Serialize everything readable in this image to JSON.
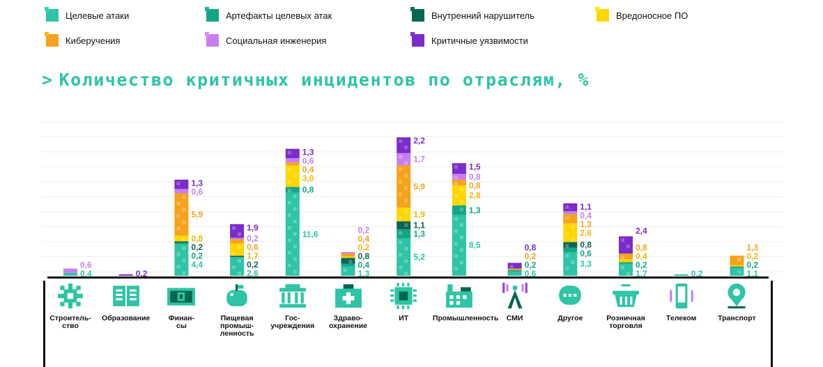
{
  "legend": [
    {
      "label": "Целевые атаки",
      "color": "#2ec4a5"
    },
    {
      "label": "Артефакты целевых атак",
      "color": "#14a585"
    },
    {
      "label": "Внутренний нарушитель",
      "color": "#0a6650"
    },
    {
      "label": "Вредоносное ПО",
      "color": "#ffd600"
    },
    {
      "label": "Киберучения",
      "color": "#f7a21b"
    },
    {
      "label": "Социальная инженерия",
      "color": "#c77ff0"
    },
    {
      "label": "Критичные уязвимости",
      "color": "#7b2cc9"
    }
  ],
  "title": "Количество критичных инцидентов по отраслям, %",
  "title_arrow": ">",
  "chart_data": {
    "type": "bar",
    "stacked": true,
    "title": "Количество критичных инцидентов по отраслям, %",
    "categories": [
      "Строитель-\nство",
      "Образование",
      "Финан-\nсы",
      "Пищевая\nпромыш-\nленность",
      "Гос-\nучреждения",
      "Здраво-\nохранение",
      "ИТ",
      "Промышленность",
      "СМИ",
      "Другое",
      "Розничная\nторговля",
      "Телеком",
      "Транспорт"
    ],
    "icons": [
      "gear-icon",
      "book-icon",
      "banknote-icon",
      "apple-icon",
      "government-building-icon",
      "medical-kit-icon",
      "chip-icon",
      "factory-icon",
      "radio-tower-icon",
      "chat-bubble-icon",
      "shopping-basket-icon",
      "smartphone-icon",
      "map-pin-icon"
    ],
    "series": [
      {
        "name": "Целевые атаки",
        "values": [
          0.4,
          0,
          4.4,
          2.6,
          11.6,
          1.3,
          5.2,
          8.5,
          0.6,
          3.3,
          1.7,
          0.2,
          1.1
        ]
      },
      {
        "name": "Артефакты целевых атак",
        "values": [
          0,
          0,
          0.2,
          0,
          0.8,
          0.4,
          1.3,
          1.3,
          0.2,
          0.6,
          0.2,
          0,
          0.2
        ]
      },
      {
        "name": "Внутренний нарушитель",
        "values": [
          0,
          0,
          0.2,
          0.2,
          0,
          0.8,
          1.1,
          0,
          0,
          0.8,
          0,
          0,
          0
        ]
      },
      {
        "name": "Вредоносное ПО",
        "values": [
          0,
          0,
          0.8,
          1.7,
          3.0,
          0.2,
          1.9,
          2.8,
          0,
          2.6,
          0.4,
          0,
          0.2
        ]
      },
      {
        "name": "Киберучения",
        "values": [
          0,
          0,
          5.9,
          0.6,
          0.4,
          0.4,
          5.9,
          0.8,
          0.2,
          1.3,
          0.8,
          0,
          1.3
        ]
      },
      {
        "name": "Социальная инженерия",
        "values": [
          0.6,
          0,
          0.6,
          0.2,
          0.6,
          0.2,
          1.7,
          0.8,
          0,
          0.4,
          0,
          0,
          0
        ]
      },
      {
        "name": "Критичные уязвимости",
        "values": [
          0,
          0.2,
          1.3,
          1.9,
          1.3,
          0,
          2.2,
          1.5,
          0.8,
          1.1,
          2.4,
          0,
          0
        ]
      }
    ],
    "labels": [
      [
        [
          "0,6",
          5
        ],
        [
          "0,4",
          0
        ]
      ],
      [
        [
          "0,2",
          6
        ]
      ],
      [
        [
          "1,3",
          6
        ],
        [
          "0,6",
          5
        ],
        [
          "5,9",
          4
        ],
        [
          "0,8",
          3
        ],
        [
          "0,2",
          2
        ],
        [
          "0,2",
          1
        ],
        [
          "4,4",
          0
        ]
      ],
      [
        [
          "1,9",
          6
        ],
        [
          "0,2",
          5
        ],
        [
          "0,6",
          4
        ],
        [
          "1,7",
          3
        ],
        [
          "0,2",
          2
        ],
        [
          "2,6",
          0
        ]
      ],
      [
        [
          "1,3",
          6
        ],
        [
          "0,6",
          5
        ],
        [
          "0,4",
          4
        ],
        [
          "3,0",
          3
        ],
        [
          "0,8",
          1
        ],
        [
          "11,6",
          0
        ]
      ],
      [
        [
          "0,2",
          5
        ],
        [
          "0,4",
          4
        ],
        [
          "0,2",
          3
        ],
        [
          "0,8",
          2
        ],
        [
          "0,4",
          1
        ],
        [
          "1,3",
          0
        ]
      ],
      [
        [
          "2,2",
          6
        ],
        [
          "1,7",
          5
        ],
        [
          "5,9",
          4
        ],
        [
          "1,9",
          3
        ],
        [
          "1,1",
          2
        ],
        [
          "1,3",
          1
        ],
        [
          "5,2",
          0
        ]
      ],
      [
        [
          "1,5",
          6
        ],
        [
          "0,8",
          5
        ],
        [
          "0,8",
          4
        ],
        [
          "2,8",
          3
        ],
        [
          "1,3",
          1
        ],
        [
          "8,5",
          0
        ]
      ],
      [
        [
          "0,8",
          6
        ],
        [
          "0,2",
          4
        ],
        [
          "0,2",
          1
        ],
        [
          "0,6",
          0
        ]
      ],
      [
        [
          "1,1",
          6
        ],
        [
          "0,4",
          5
        ],
        [
          "1,3",
          4
        ],
        [
          "2,6",
          3
        ],
        [
          "0,8",
          2
        ],
        [
          "0,6",
          1
        ],
        [
          "3,3",
          0
        ]
      ],
      [
        [
          "2,4",
          6
        ],
        [
          "0,8",
          4
        ],
        [
          "0,4",
          3
        ],
        [
          "0,2",
          1
        ],
        [
          "1,7",
          0
        ]
      ],
      [
        [
          "0,2",
          0
        ]
      ],
      [
        [
          "1,3",
          4
        ],
        [
          "0,2",
          3
        ],
        [
          "0,2",
          1
        ],
        [
          "1,1",
          0
        ]
      ]
    ],
    "grid": true,
    "legend_position": "top"
  }
}
